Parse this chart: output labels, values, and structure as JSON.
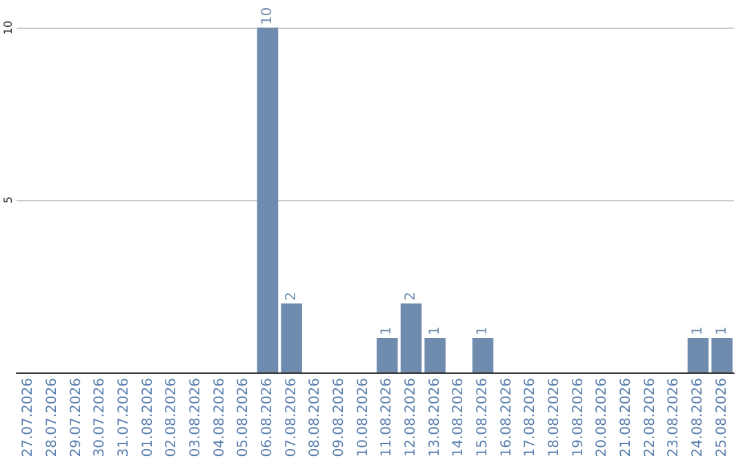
{
  "chart_data": {
    "type": "bar",
    "categories": [
      "27.07.2026",
      "28.07.2026",
      "29.07.2026",
      "30.07.2026",
      "31.07.2026",
      "01.08.2026",
      "02.08.2026",
      "03.08.2026",
      "04.08.2026",
      "05.08.2026",
      "06.08.2026",
      "07.08.2026",
      "08.08.2026",
      "09.08.2026",
      "10.08.2026",
      "11.08.2026",
      "12.08.2026",
      "13.08.2026",
      "14.08.2026",
      "15.08.2026",
      "16.08.2026",
      "17.08.2026",
      "18.08.2026",
      "19.08.2026",
      "20.08.2026",
      "21.08.2026",
      "22.08.2026",
      "23.08.2026",
      "24.08.2026",
      "25.08.2026"
    ],
    "values": [
      0,
      0,
      0,
      0,
      0,
      0,
      0,
      0,
      0,
      0,
      10,
      2,
      0,
      0,
      0,
      1,
      2,
      1,
      0,
      1,
      0,
      0,
      0,
      0,
      0,
      0,
      0,
      0,
      1,
      1
    ],
    "value_labels": [
      null,
      null,
      null,
      null,
      null,
      null,
      null,
      null,
      null,
      null,
      "10",
      "2",
      null,
      null,
      null,
      "1",
      "2",
      "1",
      null,
      "1",
      null,
      null,
      null,
      null,
      null,
      null,
      null,
      null,
      "1",
      "1"
    ],
    "color": "#6f8caf",
    "ylim": [
      0,
      10
    ],
    "yticks": [
      {
        "value": 0,
        "label": null
      },
      5,
      10
    ],
    "grid": "y"
  }
}
